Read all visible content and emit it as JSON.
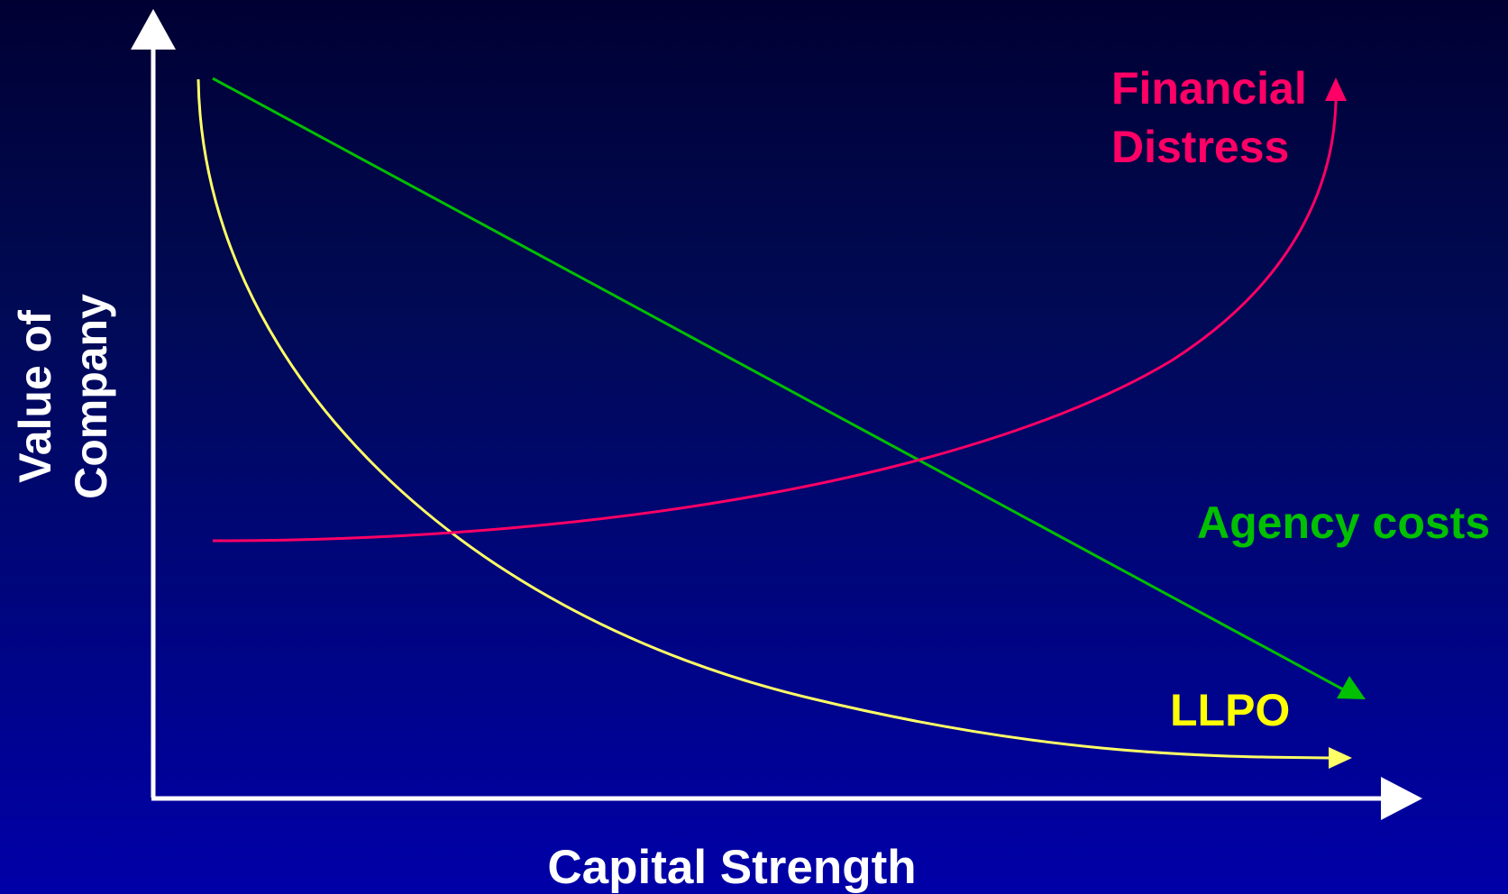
{
  "axes": {
    "x_label": "Capital Strength",
    "y_label_line1": "Value of",
    "y_label_line2": "Company",
    "axis_color": "#ffffff"
  },
  "curves": {
    "financial_distress": {
      "label_line1": "Financial",
      "label_line2": "Distress",
      "color": "#ff0066"
    },
    "agency_costs": {
      "label": "Agency costs",
      "color": "#00c000"
    },
    "llpo": {
      "label": "LLPO",
      "color": "#ffff00",
      "curve_color": "#ffff66"
    }
  }
}
